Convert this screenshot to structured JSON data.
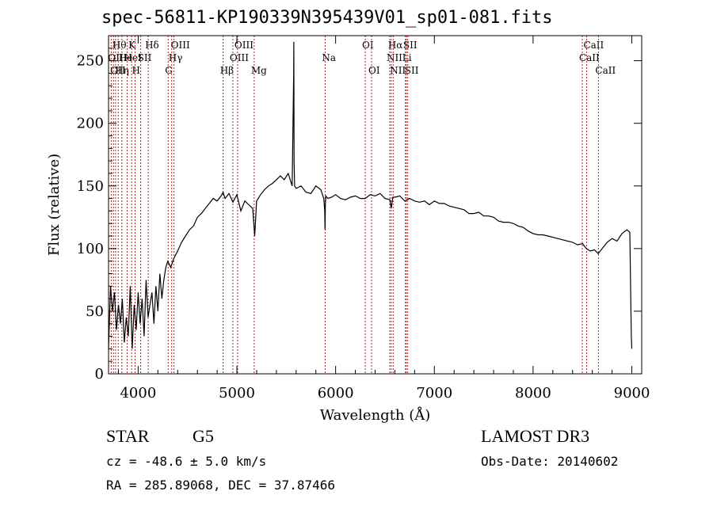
{
  "title": "spec-56811-KP190339N395439V01_sp01-081.fits",
  "footer": {
    "obj_class": "STAR",
    "subclass": "G5",
    "survey": "LAMOST DR3",
    "cz": "cz = -48.6 ± 5.0 km/s",
    "obs_date": "Obs-Date: 20140602",
    "coords": "RA = 285.89068, DEC =  37.87466"
  },
  "chart_data": {
    "type": "line",
    "xlabel": "Wavelength (Å)",
    "ylabel": "Flux (relative)",
    "xlim": [
      3700,
      9100
    ],
    "ylim": [
      0,
      270
    ],
    "xticks": [
      4000,
      5000,
      6000,
      7000,
      8000,
      9000
    ],
    "yticks": [
      0,
      50,
      100,
      150,
      200,
      250
    ],
    "line_color": "#000000",
    "marker_color": "#b22222",
    "spectrum": {
      "x": [
        3700,
        3720,
        3740,
        3760,
        3780,
        3800,
        3820,
        3840,
        3860,
        3880,
        3900,
        3920,
        3940,
        3960,
        3980,
        4000,
        4020,
        4040,
        4060,
        4080,
        4100,
        4120,
        4140,
        4160,
        4180,
        4200,
        4220,
        4240,
        4260,
        4280,
        4300,
        4330,
        4360,
        4400,
        4440,
        4480,
        4520,
        4560,
        4600,
        4640,
        4680,
        4720,
        4760,
        4800,
        4840,
        4860,
        4880,
        4920,
        4960,
        5000,
        5040,
        5080,
        5120,
        5160,
        5180,
        5200,
        5240,
        5280,
        5320,
        5360,
        5400,
        5440,
        5480,
        5520,
        5560,
        5575,
        5577,
        5579,
        5585,
        5600,
        5650,
        5700,
        5750,
        5800,
        5850,
        5880,
        5890,
        5893,
        5896,
        5900,
        5920,
        5960,
        6000,
        6050,
        6100,
        6150,
        6200,
        6250,
        6300,
        6350,
        6400,
        6450,
        6500,
        6550,
        6563,
        6580,
        6600,
        6650,
        6700,
        6750,
        6800,
        6850,
        6900,
        6950,
        7000,
        7050,
        7100,
        7150,
        7200,
        7250,
        7300,
        7350,
        7400,
        7450,
        7500,
        7550,
        7600,
        7650,
        7700,
        7750,
        7800,
        7850,
        7900,
        7950,
        8000,
        8050,
        8100,
        8150,
        8200,
        8250,
        8300,
        8350,
        8400,
        8450,
        8500,
        8540,
        8580,
        8620,
        8660,
        8700,
        8750,
        8800,
        8850,
        8900,
        8950,
        8980,
        8995,
        9000
      ],
      "y": [
        20,
        70,
        50,
        65,
        35,
        55,
        40,
        60,
        25,
        45,
        30,
        70,
        20,
        55,
        35,
        65,
        40,
        60,
        30,
        75,
        45,
        55,
        65,
        40,
        70,
        50,
        80,
        60,
        75,
        85,
        90,
        85,
        92,
        98,
        105,
        110,
        115,
        118,
        125,
        128,
        132,
        136,
        140,
        138,
        142,
        145,
        140,
        144,
        137,
        143,
        130,
        138,
        135,
        132,
        110,
        138,
        143,
        147,
        150,
        152,
        155,
        158,
        155,
        160,
        150,
        240,
        265,
        170,
        150,
        148,
        150,
        145,
        144,
        150,
        147,
        140,
        130,
        115,
        135,
        142,
        140,
        141,
        143,
        140,
        139,
        141,
        142,
        140,
        140,
        143,
        142,
        144,
        140,
        139,
        132,
        141,
        141,
        142,
        138,
        140,
        138,
        137,
        138,
        135,
        138,
        136,
        136,
        134,
        133,
        132,
        131,
        128,
        128,
        129,
        126,
        126,
        125,
        122,
        121,
        121,
        120,
        118,
        117,
        114,
        112,
        111,
        111,
        110,
        109,
        108,
        107,
        106,
        105,
        103,
        104,
        100,
        98,
        99,
        96,
        100,
        105,
        108,
        106,
        112,
        115,
        113,
        30,
        20
      ]
    },
    "line_markers": [
      {
        "w": 3727,
        "label": "OII",
        "row": 2
      },
      {
        "w": 3750,
        "label": "OII",
        "row": 3
      },
      {
        "w": 3771,
        "label": "Hθ",
        "row": 1
      },
      {
        "w": 3798,
        "label": "Hη",
        "row": 3
      },
      {
        "w": 3835,
        "label": "He",
        "row": 2
      },
      {
        "w": 3889,
        "label": "HeI",
        "row": 2
      },
      {
        "w": 3934,
        "label": "K",
        "row": 1
      },
      {
        "w": 3969,
        "label": "H",
        "row": 3
      },
      {
        "w": 4026,
        "label": "SII",
        "row": 2
      },
      {
        "w": 4102,
        "label": "Hδ",
        "row": 1
      },
      {
        "w": 4304,
        "label": "G",
        "row": 3
      },
      {
        "w": 4340,
        "label": "Hγ",
        "row": 2
      },
      {
        "w": 4363,
        "label": "OIII",
        "row": 1
      },
      {
        "w": 4861,
        "label": "Hβ",
        "row": 3
      },
      {
        "w": 4959,
        "label": "OIII",
        "row": 2
      },
      {
        "w": 5007,
        "label": "OIII",
        "row": 1
      },
      {
        "w": 5175,
        "label": "Mg",
        "row": 3
      },
      {
        "w": 5894,
        "label": "Na",
        "row": 2
      },
      {
        "w": 6300,
        "label": "OI",
        "row": 1
      },
      {
        "w": 6364,
        "label": "OI",
        "row": 3
      },
      {
        "w": 6548,
        "label": "NII",
        "row": 2
      },
      {
        "w": 6563,
        "label": "Hα",
        "row": 1
      },
      {
        "w": 6583,
        "label": "NII",
        "row": 3
      },
      {
        "w": 6707,
        "label": "Li",
        "row": 2
      },
      {
        "w": 6716,
        "label": "SII",
        "row": 1
      },
      {
        "w": 6731,
        "label": "SII",
        "row": 3
      },
      {
        "w": 8498,
        "label": "CaII",
        "row": 2
      },
      {
        "w": 8542,
        "label": "CaII",
        "row": 1
      },
      {
        "w": 8662,
        "label": "CaII",
        "row": 3
      }
    ]
  }
}
